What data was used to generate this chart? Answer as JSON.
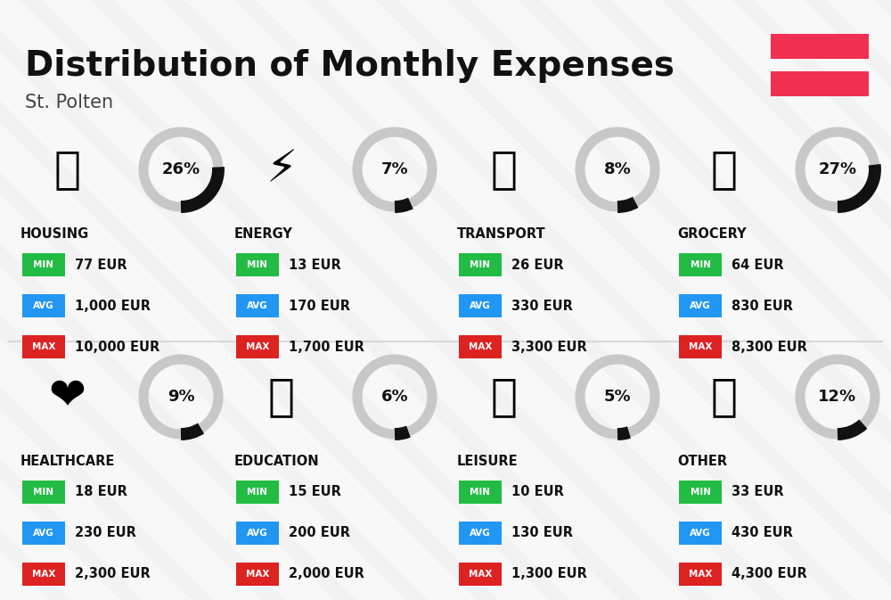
{
  "title": "Distribution of Monthly Expenses",
  "subtitle": "St. Polten",
  "bg_color": "#f2f2f2",
  "title_color": "#111111",
  "subtitle_color": "#444444",
  "min_color": "#22bb44",
  "avg_color": "#2196f3",
  "max_color": "#dd2222",
  "label_text_color": "#ffffff",
  "value_text_color": "#111111",
  "donut_bg_color": "#c8c8c8",
  "donut_fg_color": "#111111",
  "flag_red": "#f03050",
  "categories": [
    "HOUSING",
    "ENERGY",
    "TRANSPORT",
    "GROCERY",
    "HEALTHCARE",
    "EDUCATION",
    "LEISURE",
    "OTHER"
  ],
  "percentages": [
    26,
    7,
    8,
    27,
    9,
    6,
    5,
    12
  ],
  "min_vals": [
    "77 EUR",
    "13 EUR",
    "26 EUR",
    "64 EUR",
    "18 EUR",
    "15 EUR",
    "10 EUR",
    "33 EUR"
  ],
  "avg_vals": [
    "1,000 EUR",
    "170 EUR",
    "330 EUR",
    "830 EUR",
    "230 EUR",
    "200 EUR",
    "130 EUR",
    "430 EUR"
  ],
  "max_vals": [
    "10,000 EUR",
    "1,700 EUR",
    "3,300 EUR",
    "8,300 EUR",
    "2,300 EUR",
    "2,000 EUR",
    "1,300 EUR",
    "4,300 EUR"
  ],
  "icon_emojis": [
    "🏢",
    "⚡️",
    "🚌",
    "🛒",
    "🦠",
    "🎓",
    "🛍️",
    "💰"
  ],
  "stripe_color": "#ffffff",
  "stripe_alpha": 0.5,
  "row_sep_color": "#cccccc"
}
